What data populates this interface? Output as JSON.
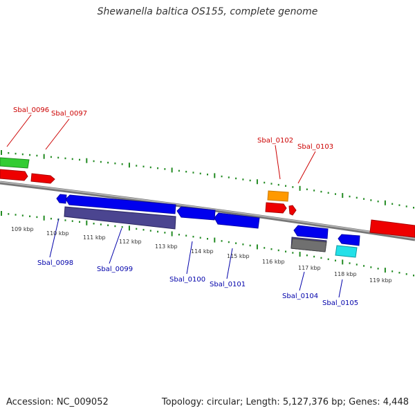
{
  "title": "Shewanella baltica OS155, complete genome",
  "footer": {
    "accession": "Accession: NC_009052",
    "summary": "Topology: circular; Length: 5,127,376 bp; Genes: 4,448"
  },
  "colors": {
    "forward_label": "#cc0000",
    "reverse_label": "#0000aa",
    "tick": "#228b22",
    "backbone": "#888888"
  },
  "scale_labels": [
    "109 kbp",
    "110 kbp",
    "111 kbp",
    "112 kbp",
    "113 kbp",
    "114 kbp",
    "115 kbp",
    "116 kbp",
    "117 kbp",
    "118 kbp",
    "119 kbp"
  ],
  "genes": [
    {
      "name": "Sbal_0096",
      "strand": "forward",
      "color": "#33cc33"
    },
    {
      "name": "Sbal_0097",
      "strand": "forward",
      "color": "#ee0000"
    },
    {
      "name": "Sbal_0098",
      "strand": "reverse",
      "color": "#0000ee"
    },
    {
      "name": "Sbal_0099",
      "strand": "reverse",
      "color": "#0000ee"
    },
    {
      "name": "Sbal_0100",
      "strand": "reverse",
      "color": "#0000ee"
    },
    {
      "name": "Sbal_0101",
      "strand": "reverse",
      "color": "#0000ee"
    },
    {
      "name": "Sbal_0102",
      "strand": "forward",
      "color": "#ff9900"
    },
    {
      "name": "Sbal_0103",
      "strand": "forward",
      "color": "#ee0000"
    },
    {
      "name": "Sbal_0104",
      "strand": "reverse",
      "color": "#0000ee"
    },
    {
      "name": "Sbal_0105",
      "strand": "reverse",
      "color": "#0000ee"
    }
  ]
}
